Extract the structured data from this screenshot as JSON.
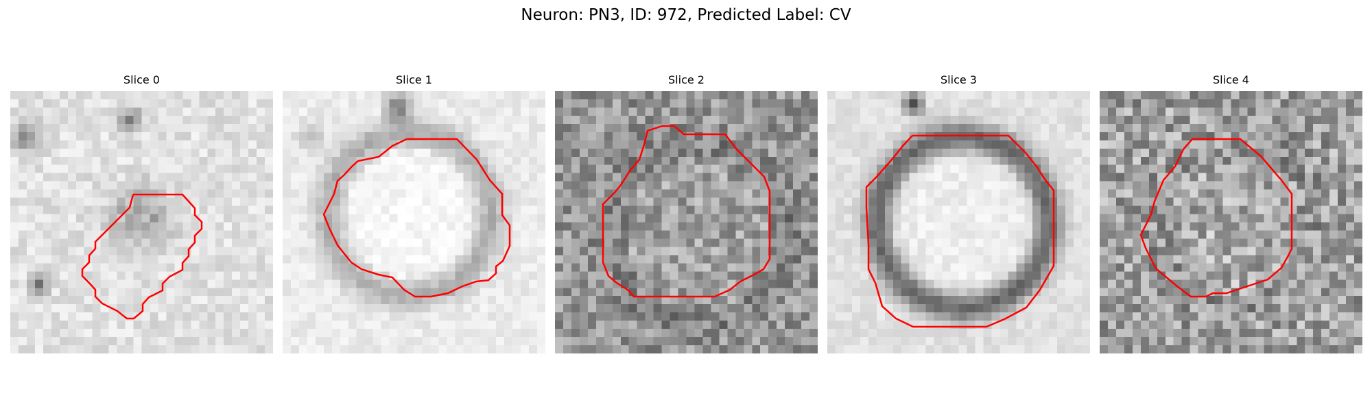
{
  "figure": {
    "title": "Neuron: PN3, ID: 972, Predicted Label: CV"
  },
  "colors": {
    "contour": "#ff0000",
    "background": "#ffffff"
  },
  "panels": [
    {
      "title": "Slice 0"
    },
    {
      "title": "Slice 1"
    },
    {
      "title": "Slice 2"
    },
    {
      "title": "Slice 3"
    },
    {
      "title": "Slice 4"
    }
  ]
}
